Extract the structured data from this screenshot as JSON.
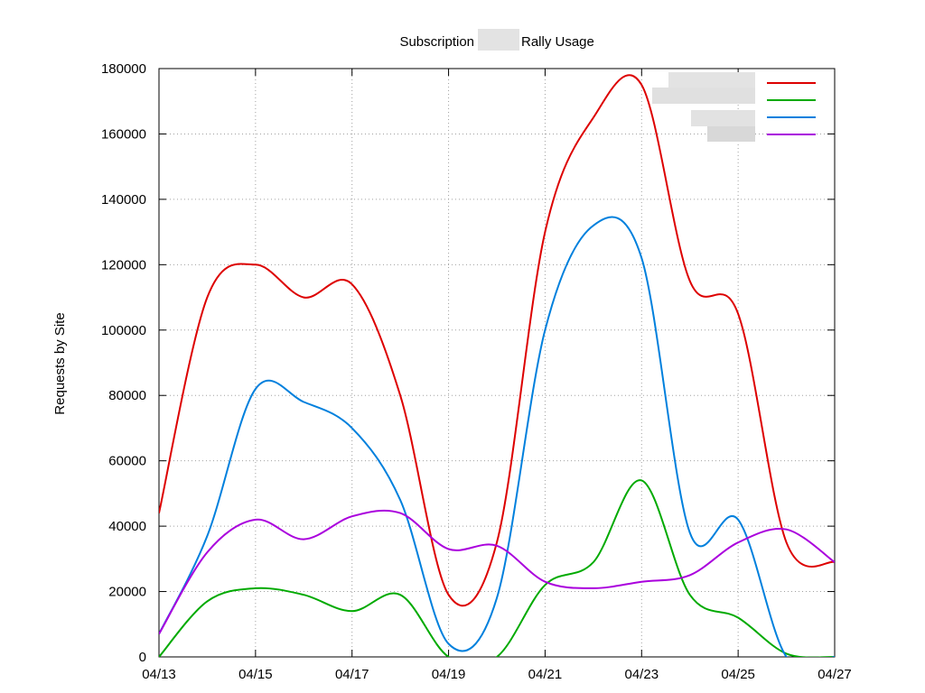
{
  "chart_data": {
    "type": "line",
    "title_prefix": "Subscription",
    "title_suffix": "Rally Usage",
    "ylabel": "Requests by Site",
    "xlabel": "",
    "x": [
      "04/13",
      "04/14",
      "04/15",
      "04/16",
      "04/17",
      "04/18",
      "04/19",
      "04/20",
      "04/21",
      "04/22",
      "04/23",
      "04/24",
      "04/25",
      "04/26",
      "04/27"
    ],
    "x_ticks": [
      "04/13",
      "04/15",
      "04/17",
      "04/19",
      "04/21",
      "04/23",
      "04/25",
      "04/27"
    ],
    "ylim": [
      0,
      180000
    ],
    "y_ticks": [
      0,
      20000,
      40000,
      60000,
      80000,
      100000,
      120000,
      140000,
      160000,
      180000
    ],
    "grid": true,
    "legend_position": "top-right",
    "series": [
      {
        "color": "#dd0000",
        "values": [
          44000,
          110000,
          120000,
          110000,
          114000,
          80000,
          19000,
          35000,
          130000,
          165000,
          175000,
          115000,
          105000,
          35000,
          29000
        ]
      },
      {
        "color": "#00aa00",
        "values": [
          0,
          17000,
          21000,
          19000,
          14000,
          19000,
          0,
          0,
          22000,
          29000,
          54000,
          19000,
          12000,
          1000,
          0
        ]
      },
      {
        "color": "#0080dd",
        "values": [
          7000,
          37000,
          82000,
          78000,
          70000,
          48000,
          4000,
          18000,
          100000,
          132000,
          122000,
          38000,
          42000,
          0,
          0
        ]
      },
      {
        "color": "#aa00dd",
        "values": [
          7000,
          32000,
          42000,
          36000,
          43000,
          44000,
          33000,
          34000,
          23000,
          21000,
          23000,
          25000,
          35000,
          39000,
          29000
        ]
      }
    ]
  }
}
